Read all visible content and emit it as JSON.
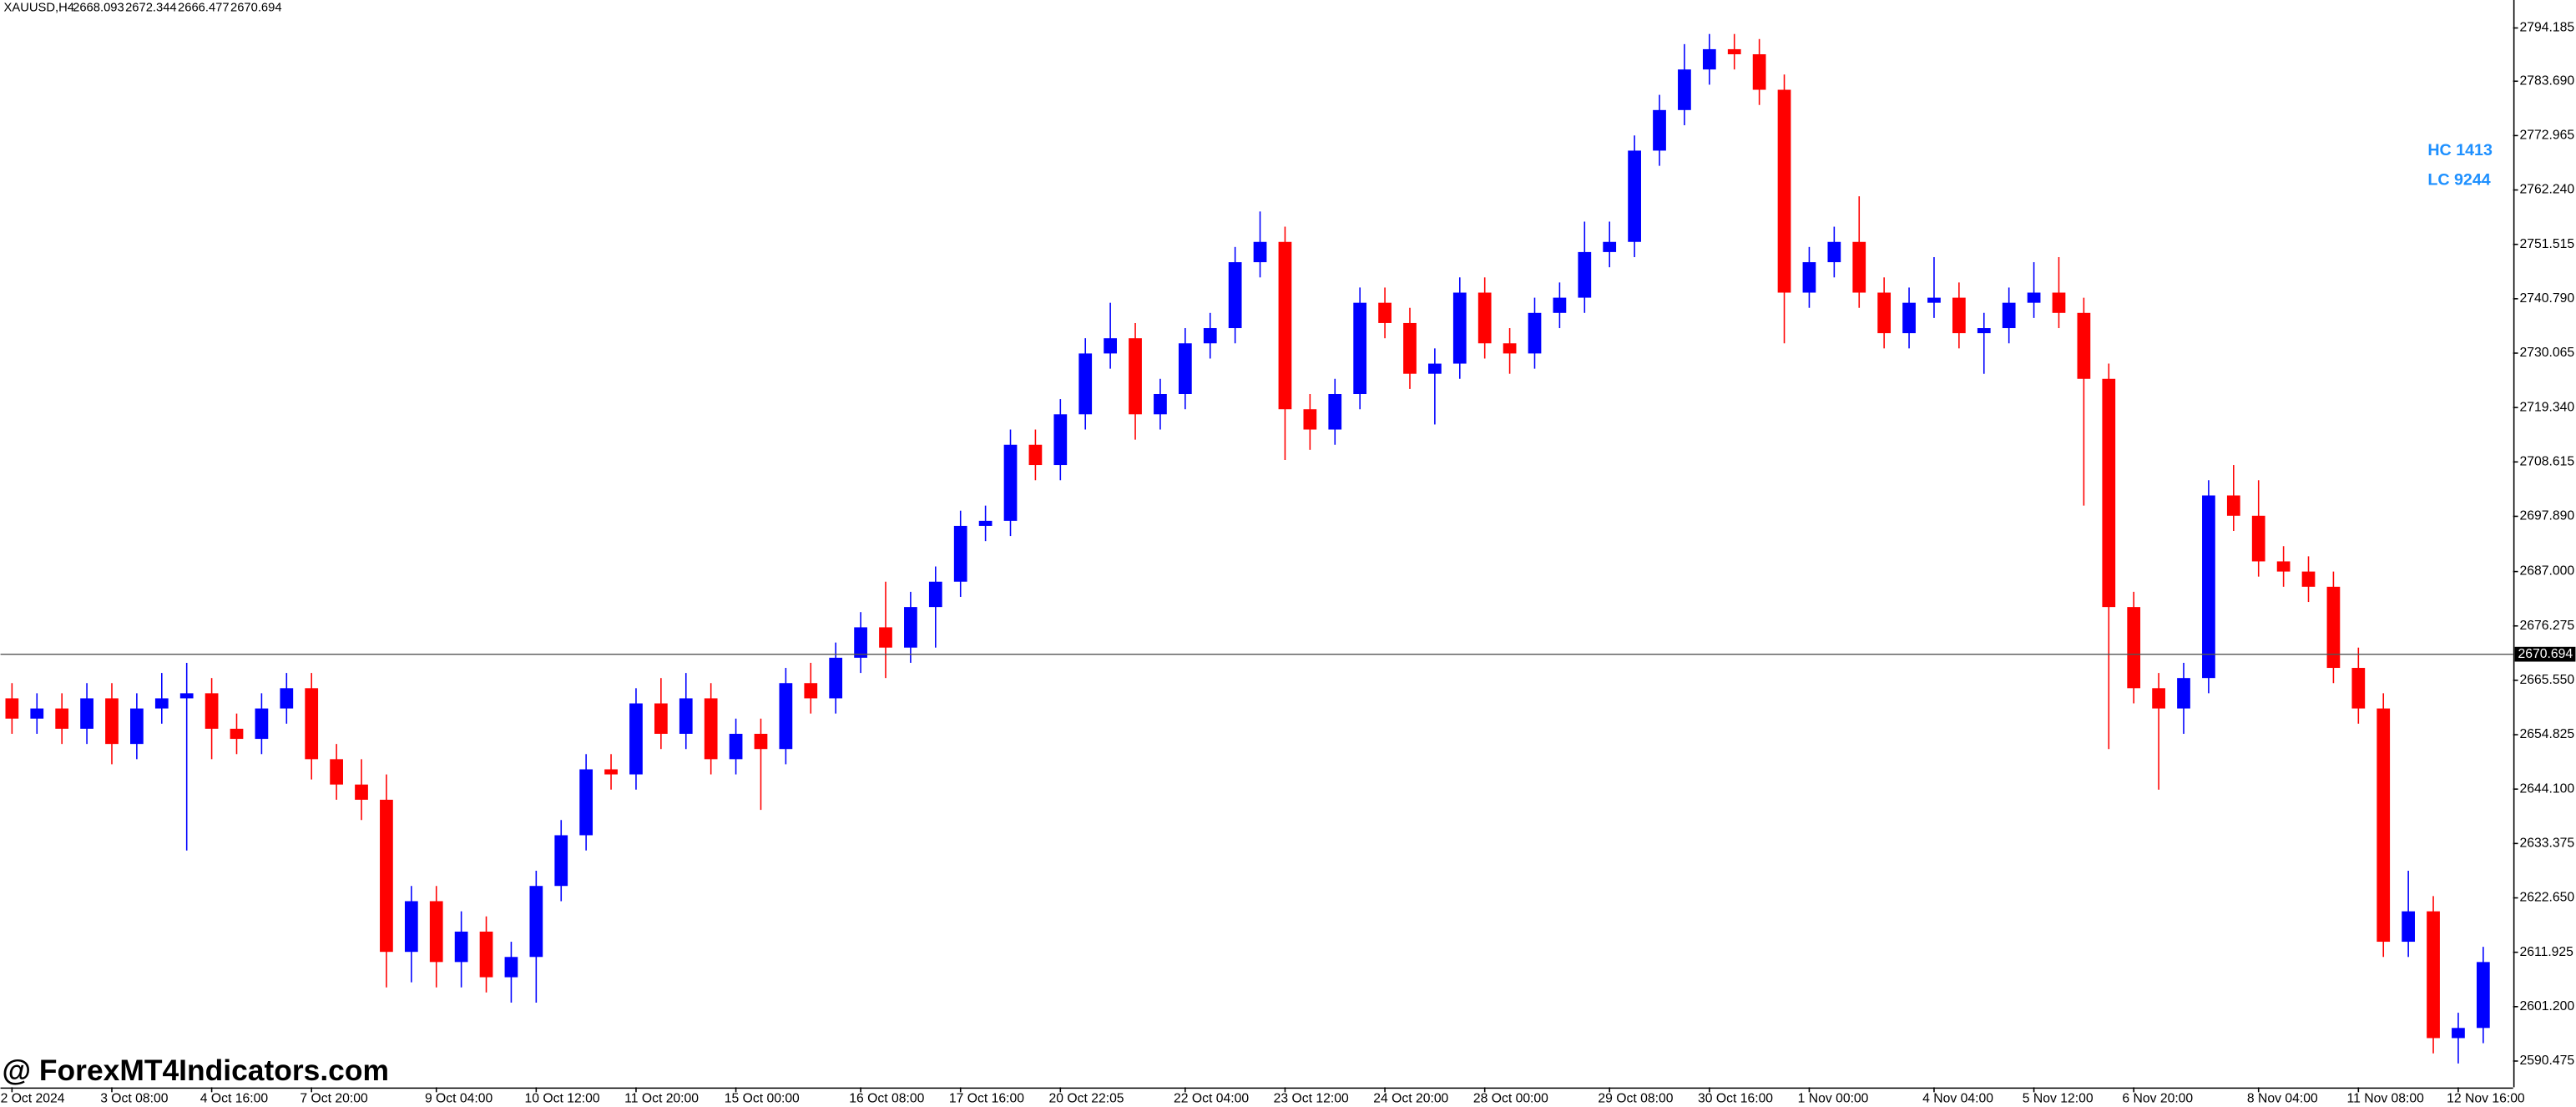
{
  "chart_data": {
    "type": "candlestick",
    "title": "XAUUSD,H4",
    "header_ohlc": [
      2668.093,
      2672.344,
      2666.477,
      2670.694
    ],
    "last_price": 2670.694,
    "annotations": [
      "HC 1413",
      "LC 9244"
    ],
    "watermark": "@ ForexMT4Indicators.com",
    "up_color": "#0000ff",
    "down_color": "#ff0000",
    "ylim": [
      2585.3,
      2799.7
    ],
    "yticks": [
      2590.475,
      {
        "value": 2601.2,
        "label": "2601.200"
      },
      2611.925,
      {
        "value": 2622.65,
        "label": "2622.650"
      },
      2633.375,
      {
        "value": 2644.1,
        "label": "2644.100"
      },
      2654.825,
      {
        "value": 2665.55,
        "label": "2665.550"
      },
      2676.275,
      {
        "value": 2687.0,
        "label": "2687.000"
      },
      {
        "value": 2697.89,
        "label": "2697.890"
      },
      2708.615,
      {
        "value": 2719.34,
        "label": "2719.340"
      },
      2730.065,
      {
        "value": 2740.79,
        "label": "2740.790"
      },
      2751.515,
      {
        "value": 2762.24,
        "label": "2762.240"
      },
      2772.965,
      {
        "value": 2783.69,
        "label": "2783.690"
      },
      2794.185
    ],
    "categories": [
      "2 Oct 2024",
      null,
      null,
      null,
      "3 Oct 08:00",
      null,
      null,
      null,
      "4 Oct 16:00",
      null,
      null,
      null,
      "7 Oct 20:00",
      null,
      null,
      null,
      null,
      "9 Oct 04:00",
      null,
      null,
      null,
      "10 Oct 12:00",
      null,
      null,
      null,
      "11 Oct 20:00",
      null,
      null,
      null,
      "15 Oct 00:00",
      null,
      null,
      null,
      null,
      "16 Oct 08:00",
      null,
      null,
      null,
      "17 Oct 16:00",
      null,
      null,
      null,
      "20 Oct 22:05",
      null,
      null,
      null,
      null,
      "22 Oct 04:00",
      null,
      null,
      null,
      "23 Oct 12:00",
      null,
      null,
      null,
      "24 Oct 20:00",
      null,
      null,
      null,
      "28 Oct 00:00",
      null,
      null,
      null,
      null,
      "29 Oct 08:00",
      null,
      null,
      null,
      "30 Oct 16:00",
      null,
      null,
      null,
      "1 Nov 00:00",
      null,
      null,
      null,
      null,
      "4 Nov 04:00",
      null,
      null,
      null,
      "5 Nov 12:00",
      null,
      null,
      null,
      "6 Nov 20:00",
      null,
      null,
      null,
      null,
      "8 Nov 04:00",
      null,
      null,
      null,
      "11 Nov 08:00",
      null,
      null,
      null,
      "12 Nov 16:00",
      null
    ],
    "open": [
      2662,
      2658,
      2660,
      2656,
      2662,
      2653,
      2660,
      2662,
      2663,
      2656,
      2654,
      2660,
      2664,
      2650,
      2645,
      2642,
      2612,
      2622,
      2610,
      2616,
      2607,
      2611,
      2625,
      2635,
      2648,
      2647,
      2661,
      2655,
      2662,
      2650,
      2655,
      2652,
      2665,
      2662,
      2670,
      2676,
      2672,
      2680,
      2685,
      2696,
      2697,
      2712,
      2708,
      2718,
      2730,
      2733,
      2718,
      2722,
      2732,
      2735,
      2748,
      2752,
      2719,
      2715,
      2722,
      2740,
      2736,
      2726,
      2728,
      2742,
      2732,
      2730,
      2738,
      2741,
      2750,
      2752,
      2770,
      2778,
      2786,
      2790,
      2789,
      2782,
      2742,
      2748,
      2752,
      2742,
      2734,
      2740,
      2741,
      2734,
      2735,
      2740,
      2742,
      2738,
      2725,
      2680,
      2664,
      2660,
      2666,
      2702,
      2698,
      2689,
      2687,
      2684,
      2668,
      2660,
      2614,
      2620,
      2595,
      2597
    ],
    "high": [
      2665,
      2663,
      2663,
      2665,
      2665,
      2663,
      2667,
      2669,
      2666,
      2659,
      2663,
      2667,
      2667,
      2653,
      2650,
      2647,
      2625,
      2625,
      2620,
      2619,
      2614,
      2628,
      2638,
      2651,
      2651,
      2664,
      2666,
      2667,
      2665,
      2658,
      2658,
      2668,
      2669,
      2673,
      2679,
      2685,
      2683,
      2688,
      2699,
      2700,
      2715,
      2715,
      2721,
      2733,
      2740,
      2736,
      2725,
      2735,
      2738,
      2751,
      2758,
      2755,
      2722,
      2725,
      2743,
      2743,
      2739,
      2731,
      2745,
      2745,
      2735,
      2741,
      2744,
      2756,
      2756,
      2773,
      2781,
      2791,
      2793,
      2793,
      2792,
      2785,
      2751,
      2755,
      2761,
      2745,
      2743,
      2749,
      2744,
      2738,
      2743,
      2748,
      2749,
      2741,
      2728,
      2683,
      2667,
      2669,
      2705,
      2708,
      2705,
      2692,
      2690,
      2687,
      2672,
      2663,
      2628,
      2623,
      2600,
      2613
    ],
    "low": [
      2655,
      2655,
      2653,
      2653,
      2649,
      2650,
      2657,
      2632,
      2650,
      2651,
      2651,
      2657,
      2646,
      2642,
      2638,
      2605,
      2606,
      2605,
      2605,
      2604,
      2602,
      2602,
      2622,
      2632,
      2644,
      2644,
      2652,
      2652,
      2647,
      2647,
      2640,
      2649,
      2659,
      2659,
      2667,
      2666,
      2669,
      2672,
      2682,
      2693,
      2694,
      2705,
      2705,
      2715,
      2727,
      2713,
      2715,
      2719,
      2729,
      2732,
      2745,
      2709,
      2711,
      2712,
      2719,
      2733,
      2723,
      2716,
      2725,
      2729,
      2726,
      2727,
      2735,
      2738,
      2747,
      2749,
      2767,
      2775,
      2783,
      2786,
      2779,
      2732,
      2739,
      2745,
      2739,
      2731,
      2731,
      2737,
      2731,
      2726,
      2732,
      2737,
      2735,
      2700,
      2652,
      2661,
      2644,
      2655,
      2663,
      2695,
      2686,
      2684,
      2681,
      2665,
      2657,
      2611,
      2611,
      2592,
      2590,
      2594
    ],
    "close": [
      2658,
      2660,
      2656,
      2662,
      2653,
      2660,
      2662,
      2663,
      2656,
      2654,
      2660,
      2664,
      2650,
      2645,
      2642,
      2612,
      2622,
      2610,
      2616,
      2607,
      2611,
      2625,
      2635,
      2648,
      2647,
      2661,
      2655,
      2662,
      2650,
      2655,
      2652,
      2665,
      2662,
      2670,
      2676,
      2672,
      2680,
      2685,
      2696,
      2697,
      2712,
      2708,
      2718,
      2730,
      2733,
      2718,
      2722,
      2732,
      2735,
      2748,
      2752,
      2719,
      2715,
      2722,
      2740,
      2736,
      2726,
      2728,
      2742,
      2732,
      2730,
      2738,
      2741,
      2750,
      2752,
      2770,
      2778,
      2786,
      2790,
      2789,
      2782,
      2742,
      2748,
      2752,
      2742,
      2734,
      2740,
      2741,
      2734,
      2735,
      2740,
      2742,
      2738,
      2725,
      2680,
      2664,
      2660,
      2666,
      2702,
      2698,
      2689,
      2687,
      2684,
      2668,
      2660,
      2614,
      2620,
      2595,
      2597,
      2610
    ]
  }
}
